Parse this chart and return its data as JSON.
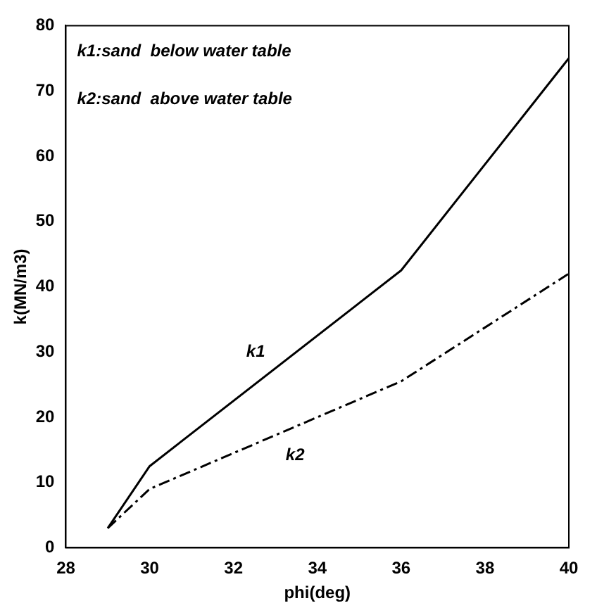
{
  "chart_data": {
    "type": "line",
    "xlabel": "phi(deg)",
    "ylabel": "k(MN/m3)",
    "xlim": [
      28,
      40
    ],
    "xticks": [
      28,
      30,
      32,
      34,
      36,
      38,
      40
    ],
    "ylim": [
      0,
      80
    ],
    "yticks": [
      0,
      10,
      20,
      30,
      40,
      50,
      60,
      70,
      80
    ],
    "grid": false,
    "legend": false,
    "marker": "none",
    "series": [
      {
        "name": "k1",
        "color": "#000000",
        "line_style": "solid",
        "x": [
          29,
          30,
          36,
          40
        ],
        "values": [
          3,
          12.5,
          42.5,
          75
        ]
      },
      {
        "name": "k2",
        "color": "#000000",
        "line_style": "dashed",
        "x": [
          29,
          30,
          36,
          40
        ],
        "values": [
          3,
          9,
          25.5,
          42
        ]
      }
    ],
    "annotations": [
      "k1:sand  below water table",
      "k2:sand  above water table"
    ]
  }
}
